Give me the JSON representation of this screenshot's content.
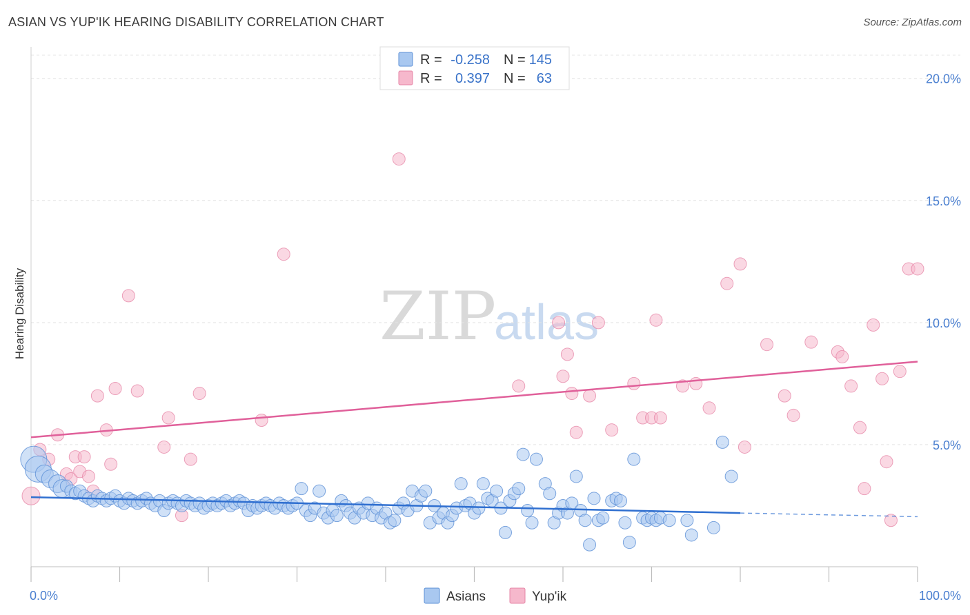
{
  "title": "ASIAN VS YUP'IK HEARING DISABILITY CORRELATION CHART",
  "source": "Source: ZipAtlas.com",
  "watermark": {
    "zip": "ZIP",
    "atlas": "atlas"
  },
  "legend": {
    "rows": [
      {
        "r_label": "R =",
        "r_value": "-0.258",
        "n_label": "N =",
        "n_value": "145",
        "color": "#a9c8f0",
        "stroke": "#5b8fd6"
      },
      {
        "r_label": "R =",
        "r_value": "0.397",
        "n_label": "N =",
        "n_value": "63",
        "color": "#f6b8cc",
        "stroke": "#e684a6"
      }
    ]
  },
  "bottom_legend": [
    {
      "label": "Asians",
      "color": "#a9c8f0",
      "stroke": "#5b8fd6"
    },
    {
      "label": "Yup'ik",
      "color": "#f6b8cc",
      "stroke": "#e684a6"
    }
  ],
  "chart_data": {
    "type": "scatter",
    "title": "ASIAN VS YUP'IK HEARING DISABILITY CORRELATION CHART",
    "xlabel": "",
    "ylabel": "Hearing Disability",
    "xlim": [
      0,
      100
    ],
    "ylim": [
      0,
      20.5
    ],
    "x_tick_labels": [
      "0.0%",
      "100.0%"
    ],
    "y_ticks": [
      5,
      10,
      15,
      20
    ],
    "y_tick_labels": [
      "5.0%",
      "10.0%",
      "15.0%",
      "20.0%"
    ],
    "grid": true,
    "legend_position": "top-center",
    "colors": {
      "asians": "#5b8fd6",
      "yupik": "#e684a6",
      "asians_line": "#2f6fd0",
      "yupik_line": "#e0609a"
    },
    "series": [
      {
        "name": "Asians",
        "trend": {
          "x0": 0,
          "y0": 2.85,
          "x1": 80,
          "y1": 2.2,
          "dash_to_x": 100,
          "dash_to_y": 2.05
        },
        "points": [
          [
            0.3,
            4.4,
            3
          ],
          [
            0.8,
            4.0,
            3
          ],
          [
            1.5,
            3.8,
            2
          ],
          [
            2.2,
            3.6,
            2
          ],
          [
            3.0,
            3.4,
            2
          ],
          [
            3.5,
            3.2,
            2
          ],
          [
            4.0,
            3.3,
            1
          ],
          [
            4.5,
            3.1,
            1
          ],
          [
            5.0,
            3.0,
            1
          ],
          [
            5.5,
            3.1,
            1
          ],
          [
            6.0,
            2.9,
            1
          ],
          [
            6.5,
            2.8,
            1
          ],
          [
            7.0,
            2.7,
            1
          ],
          [
            7.5,
            2.9,
            1
          ],
          [
            8.0,
            2.8,
            1
          ],
          [
            8.5,
            2.7,
            1
          ],
          [
            9.0,
            2.8,
            1
          ],
          [
            9.5,
            2.9,
            1
          ],
          [
            10.0,
            2.7,
            1
          ],
          [
            10.5,
            2.6,
            1
          ],
          [
            11.0,
            2.8,
            1
          ],
          [
            11.5,
            2.7,
            1
          ],
          [
            12.0,
            2.6,
            1
          ],
          [
            12.5,
            2.7,
            1
          ],
          [
            13.0,
            2.8,
            1
          ],
          [
            13.5,
            2.6,
            1
          ],
          [
            14.0,
            2.5,
            1
          ],
          [
            14.5,
            2.7,
            1
          ],
          [
            15.0,
            2.3,
            1
          ],
          [
            15.5,
            2.6,
            1
          ],
          [
            16.0,
            2.7,
            1
          ],
          [
            16.5,
            2.6,
            1
          ],
          [
            17.0,
            2.5,
            1
          ],
          [
            17.5,
            2.7,
            1
          ],
          [
            18.0,
            2.6,
            1
          ],
          [
            18.5,
            2.5,
            1
          ],
          [
            19.0,
            2.6,
            1
          ],
          [
            19.5,
            2.4,
            1
          ],
          [
            20.0,
            2.5,
            1
          ],
          [
            20.5,
            2.6,
            1
          ],
          [
            21.0,
            2.5,
            1
          ],
          [
            21.5,
            2.6,
            1
          ],
          [
            22.0,
            2.7,
            1
          ],
          [
            22.5,
            2.5,
            1
          ],
          [
            23.0,
            2.6,
            1
          ],
          [
            23.5,
            2.7,
            1
          ],
          [
            24.0,
            2.6,
            1
          ],
          [
            24.5,
            2.3,
            1
          ],
          [
            25.0,
            2.5,
            1
          ],
          [
            25.5,
            2.4,
            1
          ],
          [
            26.0,
            2.5,
            1
          ],
          [
            26.5,
            2.6,
            1
          ],
          [
            27.0,
            2.5,
            1
          ],
          [
            27.5,
            2.4,
            1
          ],
          [
            28.0,
            2.6,
            1
          ],
          [
            28.5,
            2.5,
            1
          ],
          [
            29.0,
            2.4,
            1
          ],
          [
            29.5,
            2.5,
            1
          ],
          [
            30.0,
            2.6,
            1
          ],
          [
            30.5,
            3.2,
            1
          ],
          [
            31.0,
            2.3,
            1
          ],
          [
            31.5,
            2.1,
            1
          ],
          [
            32.0,
            2.4,
            1
          ],
          [
            32.5,
            3.1,
            1
          ],
          [
            33.0,
            2.2,
            1
          ],
          [
            33.5,
            2.0,
            1
          ],
          [
            34.0,
            2.3,
            1
          ],
          [
            34.5,
            2.1,
            1
          ],
          [
            35.0,
            2.7,
            1
          ],
          [
            35.5,
            2.5,
            1
          ],
          [
            36.0,
            2.2,
            1
          ],
          [
            36.5,
            2.0,
            1
          ],
          [
            37.0,
            2.4,
            1
          ],
          [
            37.5,
            2.2,
            1
          ],
          [
            38.0,
            2.6,
            1
          ],
          [
            38.5,
            2.1,
            1
          ],
          [
            39.0,
            2.4,
            1
          ],
          [
            39.5,
            2.0,
            1
          ],
          [
            40.0,
            2.2,
            1
          ],
          [
            40.5,
            1.8,
            1
          ],
          [
            41.0,
            1.9,
            1
          ],
          [
            41.5,
            2.4,
            1
          ],
          [
            42.0,
            2.6,
            1
          ],
          [
            42.5,
            2.3,
            1
          ],
          [
            43.0,
            3.1,
            1
          ],
          [
            43.5,
            2.5,
            1
          ],
          [
            44.0,
            2.9,
            1
          ],
          [
            44.5,
            3.1,
            1
          ],
          [
            45.0,
            1.8,
            1
          ],
          [
            45.5,
            2.5,
            1
          ],
          [
            46.0,
            2.0,
            1
          ],
          [
            46.5,
            2.2,
            1
          ],
          [
            47.0,
            1.8,
            1
          ],
          [
            47.5,
            2.1,
            1
          ],
          [
            48.0,
            2.4,
            1
          ],
          [
            48.5,
            3.4,
            1
          ],
          [
            49.0,
            2.5,
            1
          ],
          [
            49.5,
            2.6,
            1
          ],
          [
            50.0,
            2.2,
            1
          ],
          [
            50.5,
            2.4,
            1
          ],
          [
            51.0,
            3.4,
            1
          ],
          [
            51.5,
            2.8,
            1
          ],
          [
            52.0,
            2.7,
            1
          ],
          [
            52.5,
            3.1,
            1
          ],
          [
            53.0,
            2.4,
            1
          ],
          [
            53.5,
            1.4,
            1
          ],
          [
            54.0,
            2.7,
            1
          ],
          [
            54.5,
            3.0,
            1
          ],
          [
            55.0,
            3.2,
            1
          ],
          [
            55.5,
            4.6,
            1
          ],
          [
            56.0,
            2.3,
            1
          ],
          [
            56.5,
            1.8,
            1
          ],
          [
            57.0,
            4.4,
            1
          ],
          [
            58.0,
            3.4,
            1
          ],
          [
            58.5,
            3.0,
            1
          ],
          [
            59.0,
            1.8,
            1
          ],
          [
            59.5,
            2.2,
            1
          ],
          [
            60.0,
            2.5,
            1
          ],
          [
            60.5,
            2.2,
            1
          ],
          [
            61.0,
            2.6,
            1
          ],
          [
            61.5,
            3.7,
            1
          ],
          [
            62.0,
            2.3,
            1
          ],
          [
            62.5,
            1.9,
            1
          ],
          [
            63.0,
            0.9,
            1
          ],
          [
            63.5,
            2.8,
            1
          ],
          [
            64.0,
            1.9,
            1
          ],
          [
            64.5,
            2.0,
            1
          ],
          [
            65.5,
            2.7,
            1
          ],
          [
            66.0,
            2.8,
            1
          ],
          [
            66.5,
            2.7,
            1
          ],
          [
            67.0,
            1.8,
            1
          ],
          [
            67.5,
            1.0,
            1
          ],
          [
            68.0,
            4.4,
            1
          ],
          [
            69.0,
            2.0,
            1
          ],
          [
            69.5,
            1.9,
            1
          ],
          [
            70.0,
            2.0,
            1
          ],
          [
            70.5,
            1.9,
            1
          ],
          [
            71.0,
            2.0,
            1
          ],
          [
            72.0,
            1.9,
            1
          ],
          [
            74.0,
            1.9,
            1
          ],
          [
            74.5,
            1.3,
            1
          ],
          [
            77.0,
            1.6,
            1
          ],
          [
            78.0,
            5.1,
            1
          ],
          [
            79.0,
            3.7,
            1
          ]
        ]
      },
      {
        "name": "Yup'ik",
        "trend": {
          "x0": 0,
          "y0": 5.3,
          "x1": 100,
          "y1": 8.4
        },
        "points": [
          [
            0.0,
            2.9,
            2
          ],
          [
            1.0,
            4.8,
            1
          ],
          [
            2.0,
            4.4,
            1
          ],
          [
            3.0,
            5.4,
            1
          ],
          [
            4.0,
            3.8,
            1
          ],
          [
            4.5,
            3.6,
            1
          ],
          [
            5.0,
            4.5,
            1
          ],
          [
            5.5,
            3.9,
            1
          ],
          [
            6.0,
            4.5,
            1
          ],
          [
            6.5,
            3.7,
            1
          ],
          [
            7.0,
            3.1,
            1
          ],
          [
            7.5,
            7.0,
            1
          ],
          [
            8.5,
            5.6,
            1
          ],
          [
            9.0,
            4.2,
            1
          ],
          [
            9.5,
            7.3,
            1
          ],
          [
            11.0,
            11.1,
            1
          ],
          [
            12.0,
            7.2,
            1
          ],
          [
            15.0,
            4.9,
            1
          ],
          [
            15.5,
            6.1,
            1
          ],
          [
            17.0,
            2.1,
            1
          ],
          [
            18.0,
            4.4,
            1
          ],
          [
            19.0,
            7.1,
            1
          ],
          [
            26.0,
            6.0,
            1
          ],
          [
            28.5,
            12.8,
            1
          ],
          [
            41.5,
            16.7,
            1
          ],
          [
            55.0,
            7.4,
            1
          ],
          [
            59.5,
            10.0,
            1
          ],
          [
            60.0,
            7.8,
            1
          ],
          [
            60.5,
            8.7,
            1
          ],
          [
            61.0,
            7.1,
            1
          ],
          [
            61.5,
            5.5,
            1
          ],
          [
            63.0,
            7.0,
            1
          ],
          [
            64.0,
            10.0,
            1
          ],
          [
            65.5,
            5.6,
            1
          ],
          [
            68.0,
            7.5,
            1
          ],
          [
            69.0,
            6.1,
            1
          ],
          [
            70.0,
            6.1,
            1
          ],
          [
            70.5,
            10.1,
            1
          ],
          [
            71.0,
            6.1,
            1
          ],
          [
            73.5,
            7.4,
            1
          ],
          [
            75.0,
            7.5,
            1
          ],
          [
            76.5,
            6.5,
            1
          ],
          [
            78.5,
            11.6,
            1
          ],
          [
            80.0,
            12.4,
            1
          ],
          [
            80.5,
            4.9,
            1
          ],
          [
            83.0,
            9.1,
            1
          ],
          [
            85.0,
            7.0,
            1
          ],
          [
            86.0,
            6.2,
            1
          ],
          [
            88.0,
            9.2,
            1
          ],
          [
            91.0,
            8.8,
            1
          ],
          [
            91.5,
            8.6,
            1
          ],
          [
            92.5,
            7.4,
            1
          ],
          [
            93.5,
            5.7,
            1
          ],
          [
            94.0,
            3.2,
            1
          ],
          [
            95.0,
            9.9,
            1
          ],
          [
            96.0,
            7.7,
            1
          ],
          [
            96.5,
            4.3,
            1
          ],
          [
            97.0,
            1.9,
            1
          ],
          [
            98.0,
            8.0,
            1
          ],
          [
            99.0,
            12.2,
            1
          ],
          [
            100.0,
            12.2,
            1
          ]
        ]
      }
    ]
  }
}
